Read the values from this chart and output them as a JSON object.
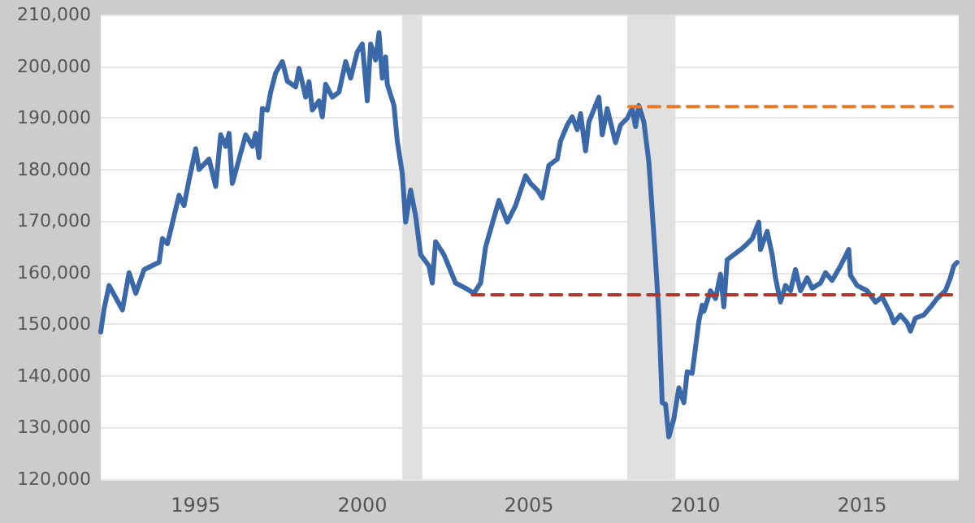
{
  "chart_data": {
    "type": "line",
    "xlim": [
      1992.15,
      2017.9
    ],
    "xticks": [
      1995,
      2000,
      2005,
      2010,
      2015
    ],
    "ylim": [
      120000,
      210000
    ],
    "yticks": [
      {
        "value": 120000,
        "label": "120,000"
      },
      {
        "value": 130000,
        "label": "130,000"
      },
      {
        "value": 140000,
        "label": "140,000"
      },
      {
        "value": 150000,
        "label": "150,000"
      },
      {
        "value": 160000,
        "label": "160,000"
      },
      {
        "value": 170000,
        "label": "170,000"
      },
      {
        "value": 180000,
        "label": "180,000"
      },
      {
        "value": 190000,
        "label": "190,000"
      },
      {
        "value": 200000,
        "label": "200,000"
      },
      {
        "value": 210000,
        "label": "210,000"
      }
    ],
    "grid": "y",
    "marker": "none",
    "bands": [
      {
        "axis": "x",
        "from": 2001.2,
        "to": 2001.8,
        "color": "#e0e0e0"
      },
      {
        "axis": "x",
        "from": 2007.95,
        "to": 2009.4,
        "color": "#e0e0e0"
      }
    ],
    "series": [
      {
        "color": "#3a68a8",
        "line_style": "solid",
        "x": [
          1992.15,
          1992.25,
          1992.4,
          1992.8,
          1993.0,
          1993.2,
          1993.45,
          1993.9,
          1994.0,
          1994.15,
          1994.5,
          1994.65,
          1994.8,
          1995.0,
          1995.1,
          1995.4,
          1995.6,
          1995.75,
          1995.9,
          1996.0,
          1996.1,
          1996.3,
          1996.5,
          1996.7,
          1996.8,
          1996.9,
          1997.0,
          1997.15,
          1997.25,
          1997.4,
          1997.6,
          1997.75,
          1998.0,
          1998.1,
          1998.3,
          1998.4,
          1998.5,
          1998.7,
          1998.8,
          1998.9,
          1999.1,
          1999.3,
          1999.5,
          1999.65,
          1999.85,
          2000.0,
          2000.15,
          2000.25,
          2000.4,
          2000.5,
          2000.6,
          2000.7,
          2000.75,
          2000.95,
          2001.05,
          2001.2,
          2001.3,
          2001.45,
          2001.6,
          2001.75,
          2002.0,
          2002.1,
          2002.2,
          2002.45,
          2002.8,
          2003.1,
          2003.35,
          2003.55,
          2003.7,
          2004.1,
          2004.35,
          2004.6,
          2004.9,
          2005.05,
          2005.25,
          2005.4,
          2005.6,
          2005.85,
          2005.95,
          2006.15,
          2006.3,
          2006.45,
          2006.55,
          2006.7,
          2006.8,
          2007.1,
          2007.2,
          2007.35,
          2007.6,
          2007.75,
          2007.95,
          2008.1,
          2008.2,
          2008.3,
          2008.45,
          2008.6,
          2008.8,
          2008.9,
          2009.0,
          2009.1,
          2009.2,
          2009.35,
          2009.5,
          2009.65,
          2009.75,
          2009.9,
          2010.0,
          2010.1,
          2010.2,
          2010.25,
          2010.45,
          2010.6,
          2010.75,
          2010.85,
          2010.95,
          2011.4,
          2011.55,
          2011.7,
          2011.9,
          2011.95,
          2012.15,
          2012.3,
          2012.4,
          2012.55,
          2012.7,
          2012.85,
          2013.0,
          2013.15,
          2013.35,
          2013.5,
          2013.75,
          2013.9,
          2014.1,
          2014.35,
          2014.6,
          2014.65,
          2014.85,
          2015.15,
          2015.4,
          2015.6,
          2015.85,
          2015.95,
          2016.15,
          2016.35,
          2016.45,
          2016.6,
          2016.85,
          2017.1,
          2017.25,
          2017.5,
          2017.65,
          2017.75,
          2017.85
        ],
        "values": [
          148500,
          153000,
          157500,
          152800,
          160000,
          156000,
          160600,
          162000,
          166600,
          165600,
          175000,
          173000,
          178000,
          184000,
          180000,
          182000,
          176700,
          186700,
          184500,
          187000,
          177300,
          182000,
          186700,
          184500,
          187000,
          182300,
          191800,
          191500,
          195000,
          198700,
          200900,
          197100,
          196000,
          199600,
          194000,
          197000,
          191500,
          193300,
          190200,
          196500,
          194000,
          195000,
          200900,
          197700,
          202800,
          204300,
          193300,
          204300,
          201200,
          206500,
          197700,
          201800,
          196500,
          192400,
          185500,
          179200,
          169800,
          176000,
          171000,
          163500,
          161300,
          158000,
          166000,
          163500,
          158000,
          157000,
          156000,
          158000,
          165000,
          174000,
          169800,
          173000,
          178800,
          177300,
          176000,
          174500,
          180800,
          182000,
          185500,
          188600,
          190200,
          187700,
          190800,
          183600,
          189200,
          194000,
          186700,
          191800,
          185200,
          188600,
          189900,
          191800,
          188300,
          192400,
          189200,
          181400,
          162500,
          151800,
          134800,
          134500,
          128200,
          131700,
          137700,
          134800,
          140800,
          140500,
          145500,
          150600,
          153700,
          152500,
          156500,
          155000,
          159700,
          153400,
          162500,
          164700,
          165600,
          166600,
          169800,
          164500,
          168000,
          163500,
          159000,
          154300,
          157500,
          156500,
          160600,
          156500,
          159000,
          157000,
          158000,
          160000,
          158500,
          161300,
          164500,
          159500,
          157500,
          156500,
          154300,
          155300,
          152100,
          150300,
          151800,
          150300,
          148700,
          151200,
          151800,
          153700,
          155000,
          156500,
          159000,
          161300,
          162000
        ]
      },
      {
        "color": "#e8792b",
        "line_style": "dashed",
        "x": [
          2008.0,
          2017.9
        ],
        "values": [
          192200,
          192200
        ]
      },
      {
        "color": "#b0362c",
        "line_style": "dashed",
        "x": [
          2003.3,
          2017.9
        ],
        "values": [
          155700,
          155700
        ]
      }
    ]
  }
}
